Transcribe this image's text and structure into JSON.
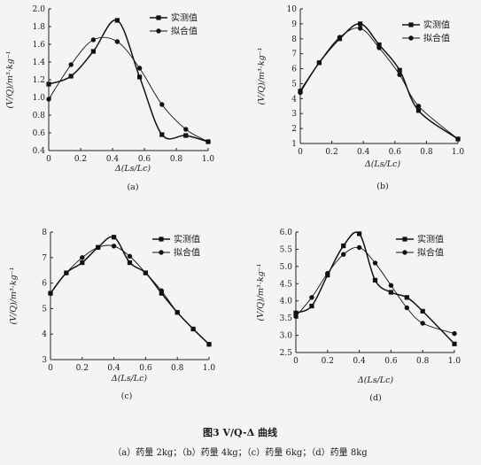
{
  "figure": {
    "title": "图3   V/Q-Δ 曲线",
    "caption": "（a）药量 2kg；（b）药量 4kg；（c）药量 6kg；（d）药量 8kg"
  },
  "chart_data": [
    {
      "type": "line",
      "panel_label": "(a)",
      "xlabel": "Δ(Ls/Lc)",
      "ylabel": "(V/Q)/m³·kg⁻¹",
      "xlim": [
        0,
        1.0
      ],
      "ylim": [
        0.4,
        2.0
      ],
      "xticks": [
        "0",
        "0.2",
        "0.4",
        "0.6",
        "0.8",
        "1.0"
      ],
      "yticks": [
        "0.4",
        "0.6",
        "0.8",
        "1.0",
        "1.2",
        "1.4",
        "1.6",
        "1.8",
        "2.0"
      ],
      "legend_position": "top-right",
      "series": [
        {
          "name": "实测值",
          "marker": "square",
          "x": [
            0,
            0.14,
            0.28,
            0.43,
            0.57,
            0.71,
            0.86,
            1.0
          ],
          "y": [
            1.15,
            1.24,
            1.52,
            1.87,
            1.23,
            0.58,
            0.57,
            0.5
          ]
        },
        {
          "name": "拟合值",
          "marker": "circle",
          "x": [
            0,
            0.14,
            0.28,
            0.43,
            0.57,
            0.71,
            0.86,
            1.0
          ],
          "y": [
            0.98,
            1.37,
            1.65,
            1.63,
            1.33,
            0.92,
            0.64,
            0.5
          ]
        }
      ]
    },
    {
      "type": "line",
      "panel_label": "(b)",
      "xlabel": "Δ(Ls/Lc)",
      "ylabel": "(V/Q)/m³·kg⁻¹",
      "xlim": [
        0,
        1.0
      ],
      "ylim": [
        1,
        10
      ],
      "xticks": [
        "0",
        "0.2",
        "0.4",
        "0.6",
        "0.8",
        "1.0"
      ],
      "yticks": [
        "1",
        "2",
        "3",
        "4",
        "5",
        "6",
        "7",
        "8",
        "9",
        "10"
      ],
      "legend_position": "top-right",
      "series": [
        {
          "name": "实测值",
          "marker": "square",
          "x": [
            0,
            0.12,
            0.25,
            0.38,
            0.5,
            0.63,
            0.75,
            1.0
          ],
          "y": [
            4.5,
            6.4,
            8.0,
            9.0,
            7.6,
            5.9,
            3.2,
            1.3
          ]
        },
        {
          "name": "拟合值",
          "marker": "circle",
          "x": [
            0,
            0.12,
            0.25,
            0.38,
            0.5,
            0.63,
            0.75,
            1.0
          ],
          "y": [
            4.4,
            6.4,
            8.1,
            8.7,
            7.4,
            5.6,
            3.5,
            1.3
          ]
        }
      ]
    },
    {
      "type": "line",
      "panel_label": "(c)",
      "xlabel": "Δ(Ls/Lc)",
      "ylabel": "(V/Q)/m³·kg⁻¹",
      "xlim": [
        0,
        1.0
      ],
      "ylim": [
        3,
        8
      ],
      "xticks": [
        "0",
        "0.2",
        "0.4",
        "0.6",
        "0.8",
        "1.0"
      ],
      "yticks": [
        "3",
        "4",
        "5",
        "6",
        "7",
        "8"
      ],
      "legend_position": "top-right",
      "series": [
        {
          "name": "实测值",
          "marker": "square",
          "x": [
            0,
            0.1,
            0.2,
            0.3,
            0.4,
            0.5,
            0.6,
            0.7,
            0.8,
            0.9,
            1.0
          ],
          "y": [
            5.6,
            6.4,
            6.8,
            7.4,
            7.8,
            6.8,
            6.4,
            5.6,
            4.85,
            4.2,
            3.6
          ]
        },
        {
          "name": "拟合值",
          "marker": "circle",
          "x": [
            0,
            0.1,
            0.2,
            0.3,
            0.4,
            0.5,
            0.6,
            0.7,
            0.8,
            0.9,
            1.0
          ],
          "y": [
            5.6,
            6.4,
            7.0,
            7.4,
            7.45,
            7.05,
            6.4,
            5.7,
            4.85,
            4.2,
            3.6
          ]
        }
      ]
    },
    {
      "type": "line",
      "panel_label": "(d)",
      "xlabel": "Δ(Ls/Lc)",
      "ylabel": "(V/Q)/m³·kg⁻¹",
      "xlim": [
        0,
        1.0
      ],
      "ylim": [
        2.5,
        6.0
      ],
      "xticks": [
        "0",
        "0.2",
        "0.4",
        "0.6",
        "0.8",
        "1.0"
      ],
      "yticks": [
        "2.5",
        "3.0",
        "3.5",
        "4.0",
        "4.5",
        "5.0",
        "5.5",
        "6.0"
      ],
      "legend_position": "top-right",
      "series": [
        {
          "name": "实测值",
          "marker": "square",
          "x": [
            0,
            0.1,
            0.2,
            0.3,
            0.4,
            0.5,
            0.6,
            0.7,
            0.8,
            1.0
          ],
          "y": [
            3.65,
            3.85,
            4.75,
            5.6,
            5.95,
            4.6,
            4.25,
            4.1,
            3.7,
            2.75
          ]
        },
        {
          "name": "拟合值",
          "marker": "circle",
          "x": [
            0,
            0.1,
            0.2,
            0.3,
            0.4,
            0.5,
            0.6,
            0.7,
            0.8,
            1.0
          ],
          "y": [
            3.55,
            4.1,
            4.8,
            5.35,
            5.55,
            5.1,
            4.45,
            3.8,
            3.35,
            3.05
          ]
        }
      ]
    }
  ]
}
